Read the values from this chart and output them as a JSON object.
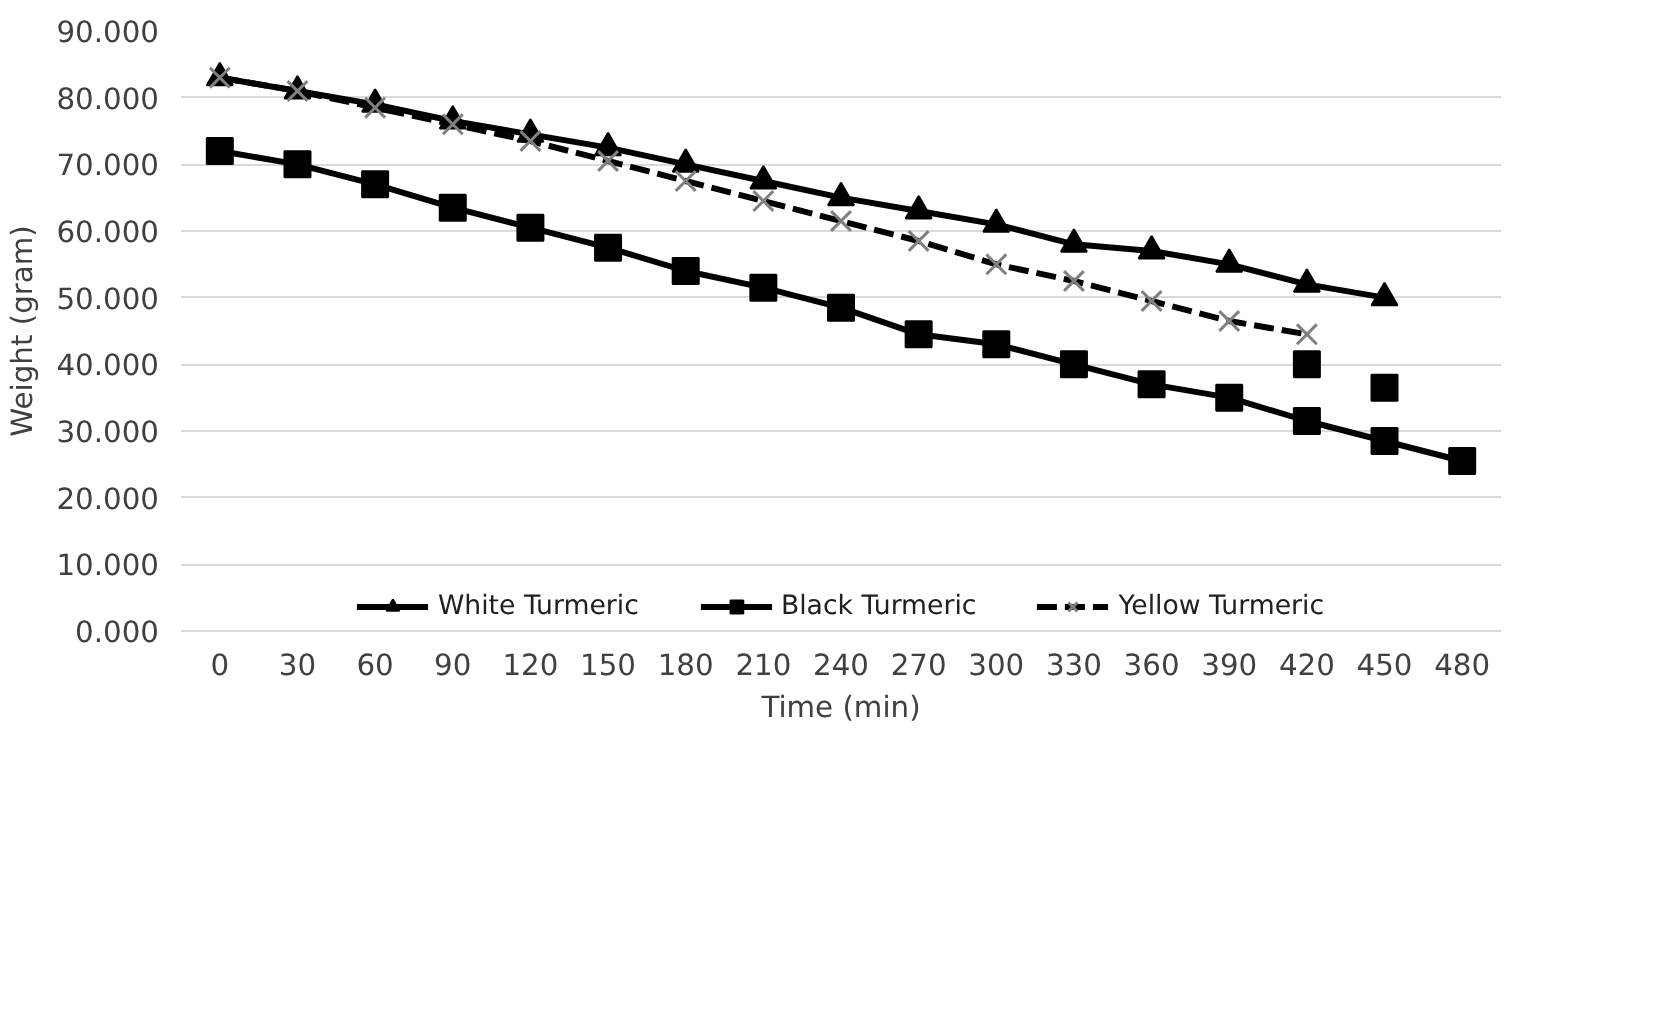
{
  "chart_data": {
    "type": "line",
    "xlabel": "Time (min)",
    "ylabel": "Weight (gram)",
    "categories": [
      "0",
      "30",
      "60",
      "90",
      "120",
      "150",
      "180",
      "210",
      "240",
      "270",
      "300",
      "330",
      "360",
      "390",
      "420",
      "450",
      "480"
    ],
    "ylim": [
      0,
      90
    ],
    "yticks": [
      {
        "value": 0,
        "label": "0.000"
      },
      {
        "value": 10,
        "label": "10.000"
      },
      {
        "value": 20,
        "label": "20.000"
      },
      {
        "value": 30,
        "label": "30.000"
      },
      {
        "value": 40,
        "label": "40.000"
      },
      {
        "value": 50,
        "label": "50.000"
      },
      {
        "value": 60,
        "label": "60.000"
      },
      {
        "value": 70,
        "label": "70.000"
      },
      {
        "value": 80,
        "label": "80.000"
      },
      {
        "value": 90,
        "label": "90.000"
      }
    ],
    "grid": "y",
    "legend": "bottom",
    "series": [
      {
        "name": "White Turmeric",
        "color": "#000000",
        "marker": "triangle",
        "line_style": "solid",
        "values": [
          83,
          81,
          79,
          76.5,
          74.5,
          72.5,
          70,
          67.5,
          65,
          63,
          61,
          58,
          57,
          55,
          52,
          50,
          null
        ]
      },
      {
        "name": "Black Turmeric",
        "color": "#000000",
        "marker": "square",
        "line_style": "solid",
        "values": [
          72,
          70,
          67,
          63.5,
          60.5,
          57.5,
          54,
          51.5,
          48.5,
          44.5,
          43,
          40,
          37,
          35,
          31.5,
          28.5,
          25.5
        ]
      },
      {
        "name": "Yellow Turmeric",
        "color": "#000000",
        "marker": "cross",
        "line_style": "dashed",
        "values": [
          83,
          81,
          78.5,
          76,
          73.5,
          70.5,
          67.5,
          64.5,
          61.5,
          58.5,
          55,
          52.5,
          49.5,
          46.5,
          44.5,
          null,
          null
        ]
      },
      {
        "type": "scatter",
        "color": "#000000",
        "marker": "square",
        "values": [
          null,
          null,
          null,
          null,
          null,
          null,
          null,
          null,
          null,
          null,
          null,
          null,
          null,
          null,
          40,
          36.5,
          null
        ]
      }
    ]
  }
}
